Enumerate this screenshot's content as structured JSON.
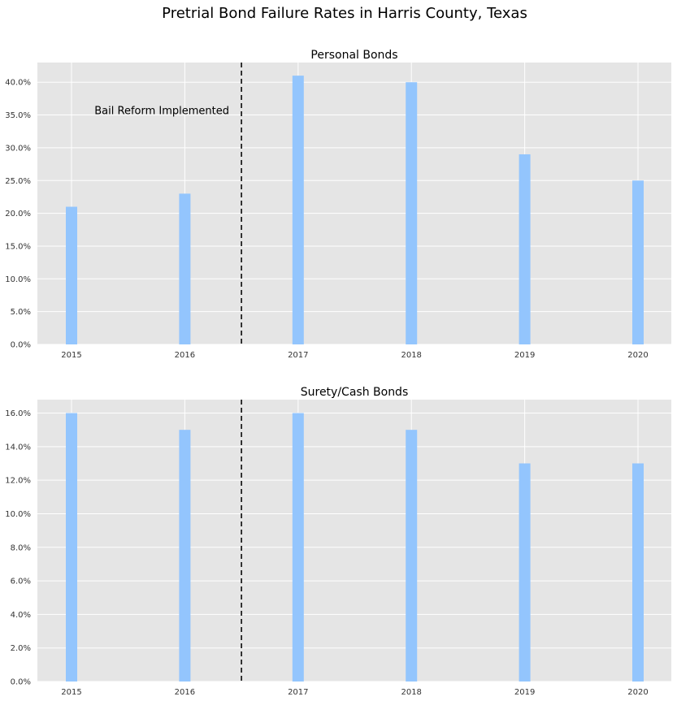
{
  "figure": {
    "suptitle": "Pretrial Bond Failure Rates in Harris County, Texas"
  },
  "colors": {
    "bar": "#93c5fd",
    "panel_bg": "#e5e5e5",
    "grid": "#ffffff",
    "vline": "#222222"
  },
  "chart_data": [
    {
      "type": "bar",
      "title": "Personal Bonds",
      "categories": [
        "2015",
        "2016",
        "2017",
        "2018",
        "2019",
        "2020"
      ],
      "values": [
        21.0,
        23.0,
        41.0,
        40.0,
        29.0,
        25.0
      ],
      "unit": "%",
      "ylim": [
        0,
        43
      ],
      "yticks": [
        "0.0%",
        "5.0%",
        "10.0%",
        "15.0%",
        "20.0%",
        "25.0%",
        "30.0%",
        "35.0%",
        "40.0%"
      ],
      "ytick_values": [
        0,
        5,
        10,
        15,
        20,
        25,
        30,
        35,
        40
      ],
      "xlabel": "",
      "ylabel": "",
      "grid": true,
      "vline_between": [
        "2016",
        "2017"
      ],
      "annotation": "Bail Reform Implemented"
    },
    {
      "type": "bar",
      "title": "Surety/Cash Bonds",
      "categories": [
        "2015",
        "2016",
        "2017",
        "2018",
        "2019",
        "2020"
      ],
      "values": [
        16.0,
        15.0,
        16.0,
        15.0,
        13.0,
        13.0
      ],
      "unit": "%",
      "ylim": [
        0,
        16.8
      ],
      "yticks": [
        "0.0%",
        "2.0%",
        "4.0%",
        "6.0%",
        "8.0%",
        "10.0%",
        "12.0%",
        "14.0%",
        "16.0%"
      ],
      "ytick_values": [
        0,
        2,
        4,
        6,
        8,
        10,
        12,
        14,
        16
      ],
      "xlabel": "",
      "ylabel": "",
      "grid": true,
      "vline_between": [
        "2016",
        "2017"
      ]
    }
  ]
}
